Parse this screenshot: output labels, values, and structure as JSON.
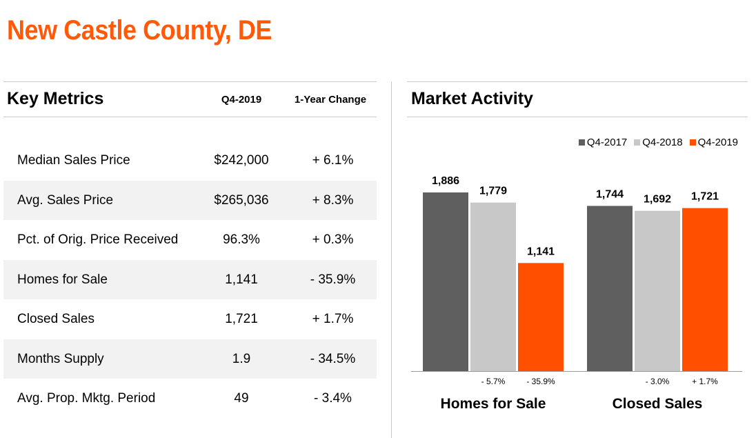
{
  "page_title": "New Castle County, DE",
  "key_metrics": {
    "title": "Key Metrics",
    "col_value": "Q4-2019",
    "col_change": "1-Year Change",
    "rows": [
      {
        "label": "Median Sales Price",
        "value": "$242,000",
        "change": "+ 6.1%"
      },
      {
        "label": "Avg. Sales Price",
        "value": "$265,036",
        "change": "+ 8.3%"
      },
      {
        "label": "Pct. of Orig. Price Received",
        "value": "96.3%",
        "change": "+ 0.3%"
      },
      {
        "label": "Homes for Sale",
        "value": "1,141",
        "change": "- 35.9%"
      },
      {
        "label": "Closed Sales",
        "value": "1,721",
        "change": "+ 1.7%"
      },
      {
        "label": "Months Supply",
        "value": "1.9",
        "change": "- 34.5%"
      },
      {
        "label": "Avg. Prop. Mktg. Period",
        "value": "49",
        "change": "- 3.4%"
      }
    ]
  },
  "market_activity": {
    "title": "Market Activity"
  },
  "chart_data": {
    "type": "bar",
    "categories": [
      "Homes for Sale",
      "Closed Sales"
    ],
    "series": [
      {
        "name": "Q4-2017",
        "values": [
          1886,
          1744
        ],
        "labels": [
          "1,886",
          "1,744"
        ],
        "color": "#5f5f5f"
      },
      {
        "name": "Q4-2018",
        "values": [
          1779,
          1692
        ],
        "labels": [
          "1,779",
          "1,692"
        ],
        "color": "#c8c8c8"
      },
      {
        "name": "Q4-2019",
        "values": [
          1141,
          1721
        ],
        "labels": [
          "1,141",
          "1,721"
        ],
        "color": "#ff5000"
      }
    ],
    "change_labels": [
      {
        "vs_2018": "- 5.7%",
        "vs_2019": "- 35.9%"
      },
      {
        "vs_2018": "- 3.0%",
        "vs_2019": "+ 1.7%"
      }
    ],
    "ylim": [
      0,
      2000
    ],
    "grid": false,
    "legend_position": "top-right"
  }
}
